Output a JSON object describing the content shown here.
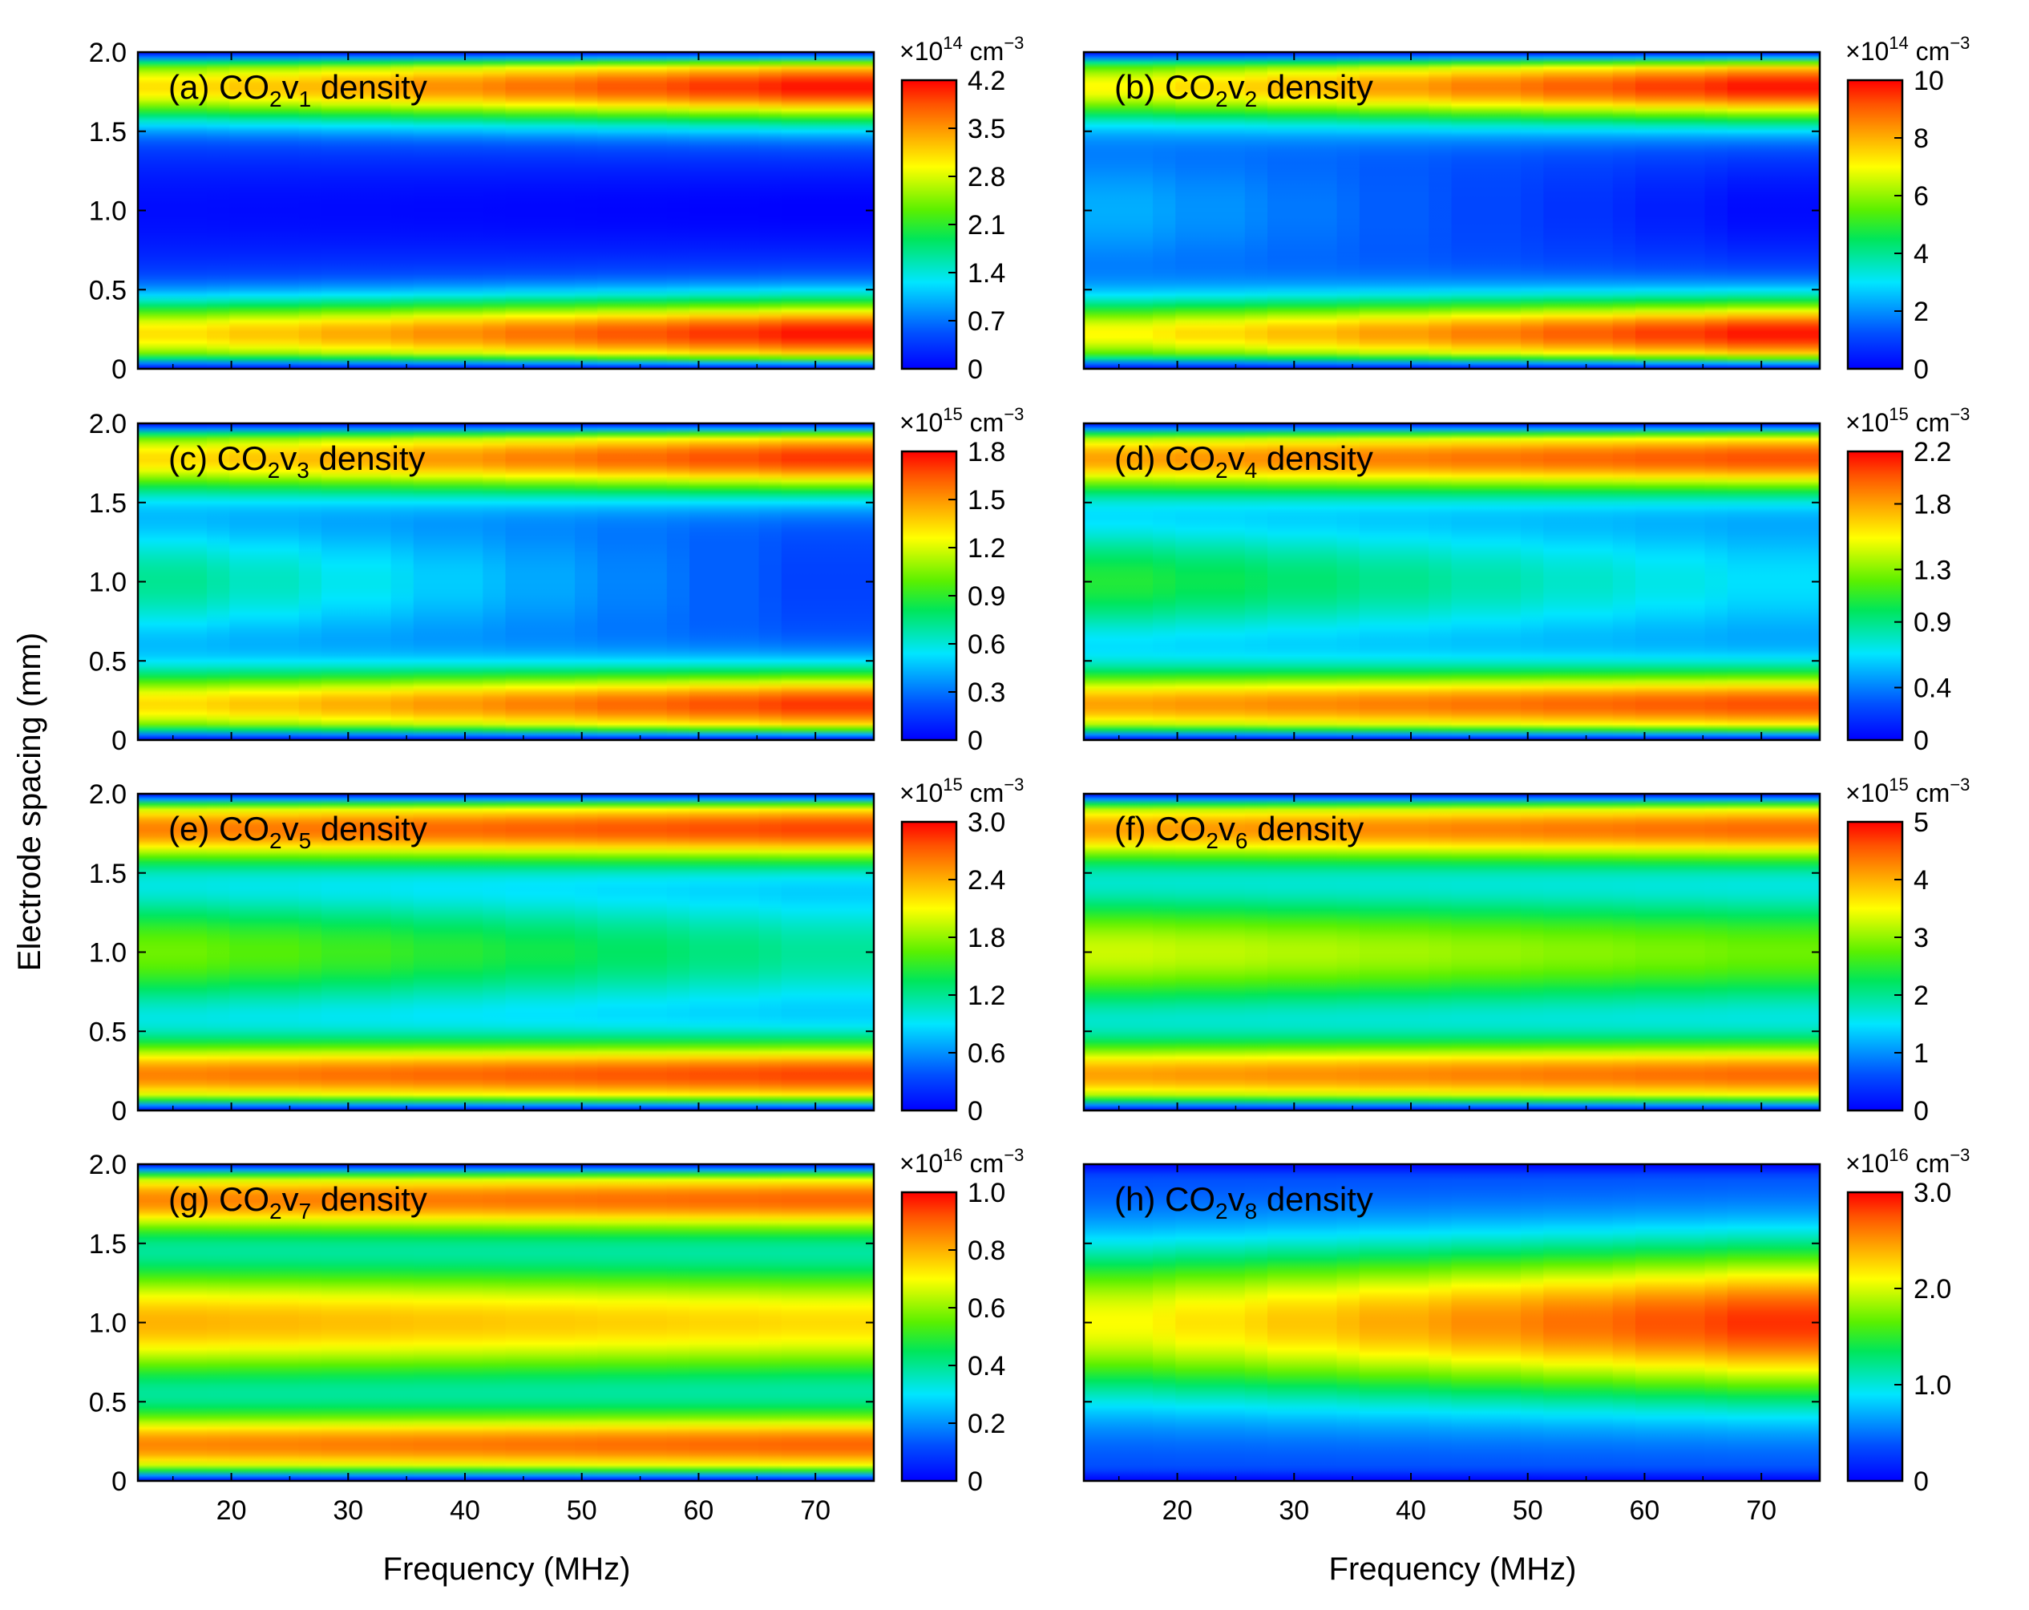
{
  "figure": {
    "ylabel": "Electrode spacing (mm)",
    "xlabel": "Frequency (MHz)"
  },
  "chart_data": [
    {
      "type": "heatmap",
      "panel": "a",
      "label": "(a) CO",
      "species_sub": "2",
      "species_v": "v",
      "vib_sub": "1",
      "suffix": " density",
      "xlim": [
        12,
        75
      ],
      "ylim": [
        0,
        2.0
      ],
      "xticks": [
        "20",
        "30",
        "40",
        "50",
        "60",
        "70"
      ],
      "yticks": [
        "0",
        "0.5",
        "1.0",
        "1.5",
        "2.0"
      ],
      "xlabel": "Frequency (MHz)",
      "ylabel": "Electrode spacing (mm)",
      "colorbar": {
        "unit_prefix": "×10",
        "exponent": "14",
        "unit": " cm",
        "unit_exp": "−3",
        "min": 0,
        "max": 4.2,
        "ticks": [
          "0",
          "0.7",
          "1.4",
          "2.1",
          "2.8",
          "3.5",
          "4.2"
        ]
      },
      "pattern": "edge",
      "edge_peak_min": 0.72,
      "edge_peak_max": 1.0,
      "center_min": 0.02,
      "center_max": 0.0
    },
    {
      "type": "heatmap",
      "panel": "b",
      "label": "(b) CO",
      "species_sub": "2",
      "species_v": "v",
      "vib_sub": "2",
      "suffix": " density",
      "xlim": [
        12,
        75
      ],
      "ylim": [
        0,
        2.0
      ],
      "xticks": [
        "20",
        "30",
        "40",
        "50",
        "60",
        "70"
      ],
      "yticks": [
        "0",
        "0.5",
        "1.0",
        "1.5",
        "2.0"
      ],
      "xlabel": "Frequency (MHz)",
      "ylabel": "Electrode spacing (mm)",
      "colorbar": {
        "unit_prefix": "×10",
        "exponent": "14",
        "unit": " cm",
        "unit_exp": "−3",
        "min": 0,
        "max": 10,
        "ticks": [
          "0",
          "2",
          "4",
          "6",
          "8",
          "10"
        ]
      },
      "pattern": "edge",
      "edge_peak_min": 0.68,
      "edge_peak_max": 1.0,
      "center_min": 0.25,
      "center_max": 0.0
    },
    {
      "type": "heatmap",
      "panel": "c",
      "label": "(c) CO",
      "species_sub": "2",
      "species_v": "v",
      "vib_sub": "3",
      "suffix": " density",
      "xlim": [
        12,
        75
      ],
      "ylim": [
        0,
        2.0
      ],
      "xticks": [
        "20",
        "30",
        "40",
        "50",
        "60",
        "70"
      ],
      "yticks": [
        "0",
        "0.5",
        "1.0",
        "1.5",
        "2.0"
      ],
      "xlabel": "Frequency (MHz)",
      "ylabel": "Electrode spacing (mm)",
      "colorbar": {
        "unit_prefix": "×10",
        "exponent": "15",
        "unit": " cm",
        "unit_exp": "−3",
        "min": 0,
        "max": 1.8,
        "ticks": [
          "0",
          "0.3",
          "0.6",
          "0.9",
          "1.2",
          "1.5",
          "1.8"
        ]
      },
      "pattern": "edge",
      "edge_peak_min": 0.72,
      "edge_peak_max": 0.96,
      "center_min": 0.42,
      "center_max": 0.08
    },
    {
      "type": "heatmap",
      "panel": "d",
      "label": "(d) CO",
      "species_sub": "2",
      "species_v": "v",
      "vib_sub": "4",
      "suffix": " density",
      "xlim": [
        12,
        75
      ],
      "ylim": [
        0,
        2.0
      ],
      "xticks": [
        "20",
        "30",
        "40",
        "50",
        "60",
        "70"
      ],
      "yticks": [
        "0",
        "0.5",
        "1.0",
        "1.5",
        "2.0"
      ],
      "xlabel": "Frequency (MHz)",
      "ylabel": "Electrode spacing (mm)",
      "colorbar": {
        "unit_prefix": "×10",
        "exponent": "15",
        "unit": " cm",
        "unit_exp": "−3",
        "min": 0,
        "max": 2.2,
        "ticks": [
          "0",
          "0.4",
          "0.9",
          "1.3",
          "1.8",
          "2.2"
        ]
      },
      "pattern": "edge",
      "edge_peak_min": 0.8,
      "edge_peak_max": 0.92,
      "center_min": 0.5,
      "center_max": 0.28
    },
    {
      "type": "heatmap",
      "panel": "e",
      "label": "(e) CO",
      "species_sub": "2",
      "species_v": "v",
      "vib_sub": "5",
      "suffix": " density",
      "xlim": [
        12,
        75
      ],
      "ylim": [
        0,
        2.0
      ],
      "xticks": [
        "20",
        "30",
        "40",
        "50",
        "60",
        "70"
      ],
      "yticks": [
        "0",
        "0.5",
        "1.0",
        "1.5",
        "2.0"
      ],
      "xlabel": "Frequency (MHz)",
      "ylabel": "Electrode spacing (mm)",
      "colorbar": {
        "unit_prefix": "×10",
        "exponent": "15",
        "unit": " cm",
        "unit_exp": "−3",
        "min": 0,
        "max": 3.0,
        "ticks": [
          "0",
          "0.6",
          "1.2",
          "1.8",
          "2.4",
          "3.0"
        ]
      },
      "pattern": "edge",
      "edge_peak_min": 0.84,
      "edge_peak_max": 0.93,
      "center_min": 0.58,
      "center_max": 0.38
    },
    {
      "type": "heatmap",
      "panel": "f",
      "label": "(f) CO",
      "species_sub": "2",
      "species_v": "v",
      "vib_sub": "6",
      "suffix": " density",
      "xlim": [
        12,
        75
      ],
      "ylim": [
        0,
        2.0
      ],
      "xticks": [
        "20",
        "30",
        "40",
        "50",
        "60",
        "70"
      ],
      "yticks": [
        "0",
        "0.5",
        "1.0",
        "1.5",
        "2.0"
      ],
      "xlabel": "Frequency (MHz)",
      "ylabel": "Electrode spacing (mm)",
      "colorbar": {
        "unit_prefix": "×10",
        "exponent": "15",
        "unit": " cm",
        "unit_exp": "−3",
        "min": 0,
        "max": 5,
        "ticks": [
          "0",
          "1",
          "2",
          "3",
          "4",
          "5"
        ]
      },
      "pattern": "edge",
      "edge_peak_min": 0.8,
      "edge_peak_max": 0.88,
      "center_min": 0.66,
      "center_max": 0.56
    },
    {
      "type": "heatmap",
      "panel": "g",
      "label": "(g) CO",
      "species_sub": "2",
      "species_v": "v",
      "vib_sub": "7",
      "suffix": " density",
      "xlim": [
        12,
        75
      ],
      "ylim": [
        0,
        2.0
      ],
      "xticks": [
        "20",
        "30",
        "40",
        "50",
        "60",
        "70"
      ],
      "yticks": [
        "0",
        "0.5",
        "1.0",
        "1.5",
        "2.0"
      ],
      "xlabel": "Frequency (MHz)",
      "ylabel": "Electrode spacing (mm)",
      "colorbar": {
        "unit_prefix": "×10",
        "exponent": "16",
        "unit": " cm",
        "unit_exp": "−3",
        "min": 0,
        "max": 1.0,
        "ticks": [
          "0",
          "0.2",
          "0.4",
          "0.6",
          "0.8",
          "1.0"
        ]
      },
      "pattern": "edge",
      "edge_peak_min": 0.83,
      "edge_peak_max": 0.88,
      "center_min": 0.8,
      "center_max": 0.74
    },
    {
      "type": "heatmap",
      "panel": "h",
      "label": "(h) CO",
      "species_sub": "2",
      "species_v": "v",
      "vib_sub": "8",
      "suffix": " density",
      "xlim": [
        12,
        75
      ],
      "ylim": [
        0,
        2.0
      ],
      "xticks": [
        "20",
        "30",
        "40",
        "50",
        "60",
        "70"
      ],
      "yticks": [
        "0",
        "0.5",
        "1.0",
        "1.5",
        "2.0"
      ],
      "xlabel": "Frequency (MHz)",
      "ylabel": "Electrode spacing (mm)",
      "colorbar": {
        "unit_prefix": "×10",
        "exponent": "16",
        "unit": " cm",
        "unit_exp": "−3",
        "min": 0,
        "max": 3.0,
        "ticks": [
          "0",
          "1.0",
          "2.0",
          "3.0"
        ]
      },
      "pattern": "center",
      "center_peak_min": 0.68,
      "center_peak_max": 0.97,
      "edge_value": 0.2
    }
  ]
}
